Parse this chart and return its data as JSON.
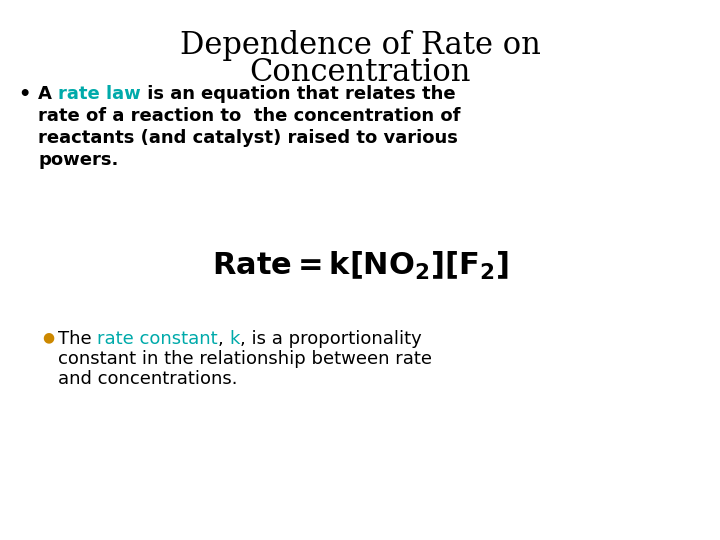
{
  "title_line1": "Dependence of Rate on",
  "title_line2": "Concentration",
  "title_color": "#000000",
  "title_fontsize": 22,
  "background_color": "#ffffff",
  "bullet_fontsize": 13,
  "equation_fontsize": 22,
  "equation_color": "#000000",
  "teal_color": "#00aaaa",
  "orange_color": "#cc8800",
  "black_color": "#000000",
  "subbullet_fontsize": 13,
  "bullet1_line2": "rate of a reaction to  the concentration of",
  "bullet1_line3": "reactants (and catalyst) raised to various",
  "bullet1_line4": "powers.",
  "subbullet_line2": "constant in the relationship between rate",
  "subbullet_line3": "and concentrations."
}
